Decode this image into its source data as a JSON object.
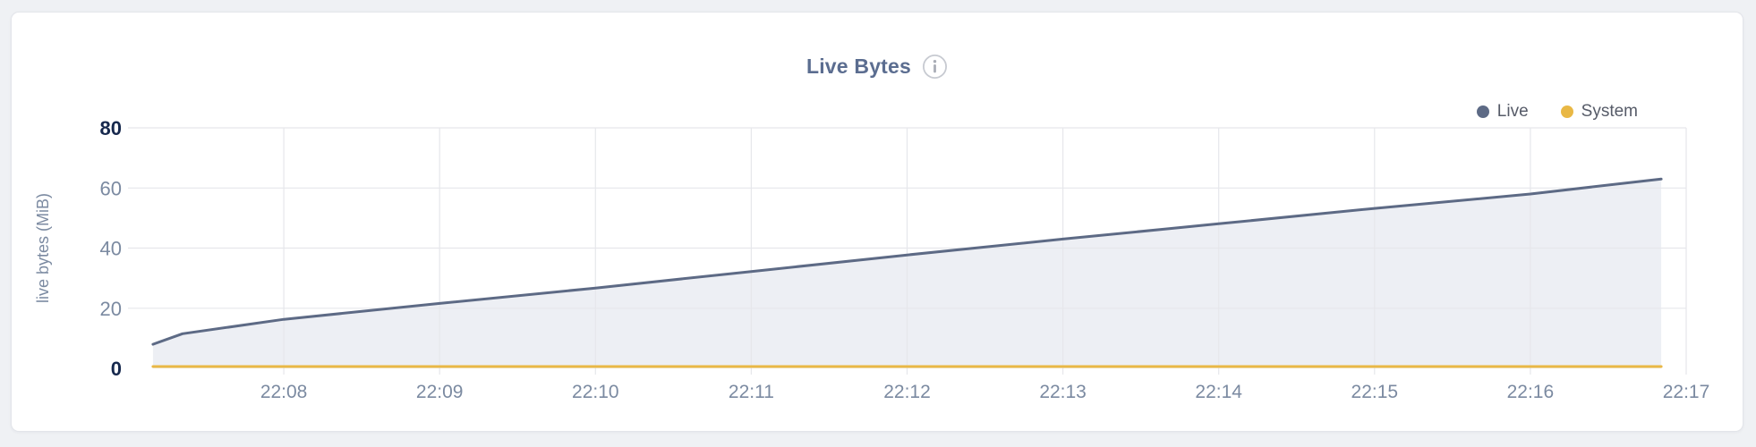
{
  "header": {
    "title": "Live Bytes"
  },
  "legend": {
    "items": [
      {
        "label": "Live",
        "color": "#5d6a85"
      },
      {
        "label": "System",
        "color": "#e9b845"
      }
    ]
  },
  "chart_data": {
    "type": "area",
    "title": "Live Bytes",
    "xlabel": "",
    "ylabel": "live bytes (MiB)",
    "grid": true,
    "grid_color": "#e6e7eb",
    "legend_position": "top-right",
    "x_axis": {
      "start_time": "22:07",
      "domain_minutes": [
        0,
        10
      ],
      "tick_minutes": [
        1,
        2,
        3,
        4,
        5,
        6,
        7,
        8,
        9,
        10
      ],
      "tick_labels": [
        "22:08",
        "22:09",
        "22:10",
        "22:11",
        "22:12",
        "22:13",
        "22:14",
        "22:15",
        "22:16",
        "22:17"
      ]
    },
    "y_axis": {
      "range": [
        0,
        80
      ],
      "ticks": [
        0,
        20,
        40,
        60,
        80
      ],
      "emphasized_ticks": [
        0,
        80
      ],
      "tick_color": "#7b8aa1",
      "emphasis_color": "#16284d"
    },
    "series": [
      {
        "name": "Live",
        "color": "#5d6a85",
        "fill": "#edeff4",
        "x_minutes": [
          0.16,
          0.35,
          1,
          2,
          3,
          4,
          5,
          6,
          7,
          8,
          9,
          9.84
        ],
        "values_mib": [
          8,
          11.5,
          16.3,
          21.6,
          26.7,
          32.2,
          37.7,
          43,
          48.1,
          53.2,
          58,
          63
        ]
      },
      {
        "name": "System",
        "color": "#e9b845",
        "fill": null,
        "x_minutes": [
          0.16,
          9.84
        ],
        "values_mib": [
          0.6,
          0.6
        ]
      }
    ]
  }
}
